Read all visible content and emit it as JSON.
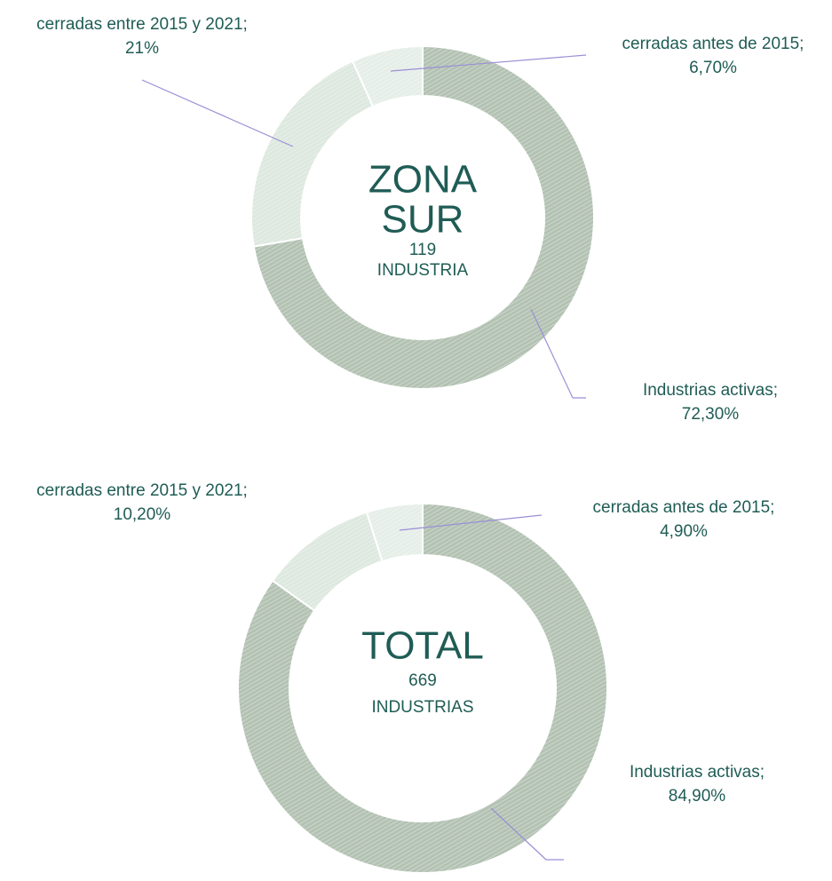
{
  "chart_data": [
    {
      "type": "donut",
      "title_lines": [
        "ZONA",
        "SUR"
      ],
      "center_number": 119,
      "center_label": "INDUSTRIA",
      "categories": [
        "Industrias activas;",
        "cerradas entre 2015 y 2021;",
        "cerradas antes de 2015;"
      ],
      "values": [
        72.3,
        21,
        6.7
      ],
      "value_labels": [
        "72,30%",
        "21%",
        "6,70%"
      ],
      "colors": [
        "#b3c2b3",
        "#dde8df",
        "#e6eee8"
      ]
    },
    {
      "type": "donut",
      "title_lines": [
        "TOTAL"
      ],
      "center_number": 669,
      "center_label": "INDUSTRIAS",
      "categories": [
        "Industrias activas;",
        "cerradas entre 2015 y 2021;",
        "cerradas antes de 2015;"
      ],
      "values": [
        84.9,
        10.2,
        4.9
      ],
      "value_labels": [
        "84,90%",
        "10,20%",
        "4,90%"
      ],
      "colors": [
        "#b3c2b3",
        "#dde8df",
        "#e6eee8"
      ]
    }
  ]
}
